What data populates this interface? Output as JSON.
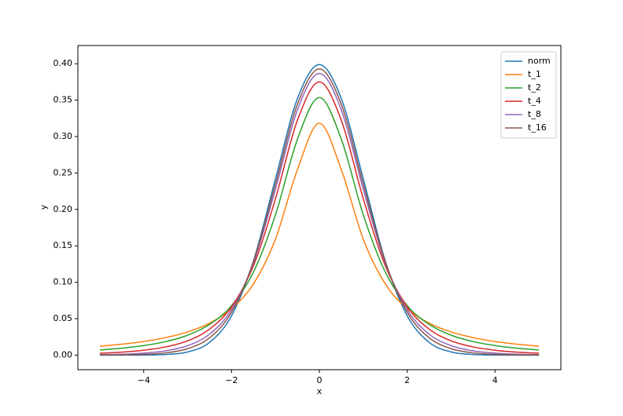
{
  "chart_data": {
    "type": "line",
    "x_label": "x",
    "y_label": "y",
    "x": [
      -5,
      -4.5,
      -4,
      -3.5,
      -3,
      -2.5,
      -2,
      -1.5,
      -1,
      -0.5,
      0,
      0.5,
      1,
      1.5,
      2,
      2.5,
      3,
      3.5,
      4,
      4.5,
      5
    ],
    "series": [
      {
        "name": "norm",
        "color": "#1f77b4",
        "values": [
          0.0,
          0.0,
          0.0001,
          0.0009,
          0.0044,
          0.0175,
          0.054,
          0.1295,
          0.242,
          0.3521,
          0.3989,
          0.3521,
          0.242,
          0.1295,
          0.054,
          0.0175,
          0.0044,
          0.0009,
          0.0001,
          0.0,
          0.0
        ]
      },
      {
        "name": "t_1",
        "color": "#ff7f0e",
        "values": [
          0.0122,
          0.015,
          0.0187,
          0.0241,
          0.0318,
          0.0439,
          0.0637,
          0.0979,
          0.1592,
          0.2546,
          0.3183,
          0.2546,
          0.1592,
          0.0979,
          0.0637,
          0.0439,
          0.0318,
          0.0241,
          0.0187,
          0.015,
          0.0122
        ]
      },
      {
        "name": "t_2",
        "color": "#2ca02c",
        "values": [
          0.0071,
          0.0095,
          0.0131,
          0.0186,
          0.0274,
          0.0422,
          0.068,
          0.1141,
          0.1925,
          0.2963,
          0.3536,
          0.2963,
          0.1925,
          0.1141,
          0.068,
          0.0422,
          0.0274,
          0.0186,
          0.0131,
          0.0095,
          0.0071
        ]
      },
      {
        "name": "t_4",
        "color": "#d62728",
        "values": [
          0.0026,
          0.0041,
          0.0067,
          0.0113,
          0.0197,
          0.0357,
          0.0663,
          0.1229,
          0.2147,
          0.3223,
          0.375,
          0.3223,
          0.2147,
          0.1229,
          0.0663,
          0.0357,
          0.0197,
          0.0113,
          0.0067,
          0.0041,
          0.0026
        ]
      },
      {
        "name": "t_8",
        "color": "#9467bd",
        "values": [
          0.0007,
          0.0013,
          0.0028,
          0.0059,
          0.013,
          0.0288,
          0.0624,
          0.1268,
          0.2276,
          0.3367,
          0.3867,
          0.3367,
          0.2276,
          0.1268,
          0.0624,
          0.0288,
          0.013,
          0.0059,
          0.0028,
          0.0013,
          0.0007
        ]
      },
      {
        "name": "t_16",
        "color": "#8c564b",
        "values": [
          0.0003,
          0.0004,
          0.0011,
          0.0031,
          0.0088,
          0.0238,
          0.0589,
          0.1284,
          0.2346,
          0.3443,
          0.3928,
          0.3443,
          0.2346,
          0.1284,
          0.0589,
          0.0238,
          0.0088,
          0.0031,
          0.0011,
          0.0004,
          0.0003
        ]
      }
    ],
    "xlim": [
      -5.5,
      5.5
    ],
    "xticks": [
      {
        "value": -4,
        "label": "−4"
      },
      {
        "value": -2,
        "label": "−2"
      },
      0,
      2,
      4
    ],
    "ylim": [
      -0.02,
      0.425
    ],
    "yticks": [
      {
        "value": 0,
        "label": "0.00"
      },
      {
        "value": 0.05,
        "label": "0.05"
      },
      {
        "value": 0.1,
        "label": "0.10"
      },
      {
        "value": 0.15,
        "label": "0.15"
      },
      {
        "value": 0.2,
        "label": "0.20"
      },
      {
        "value": 0.25,
        "label": "0.25"
      },
      {
        "value": 0.3,
        "label": "0.30"
      },
      {
        "value": 0.35,
        "label": "0.35"
      },
      {
        "value": 0.4,
        "label": "0.40"
      }
    ],
    "grid": false,
    "legend": "upper-right"
  }
}
